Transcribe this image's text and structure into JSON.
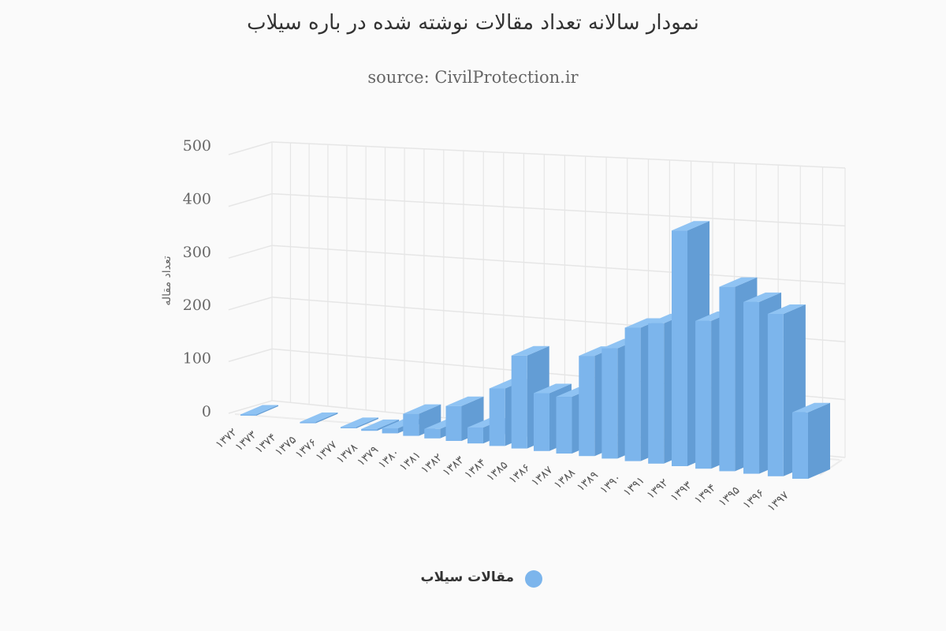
{
  "chart_data": {
    "type": "bar",
    "three_d": true,
    "title": "نمودار سالانه تعداد مقالات نوشته شده در باره سیلاب",
    "subtitle": "source: CivilProtection.ir",
    "xlabel": "",
    "ylabel": "تعداد مقاله",
    "ylim": [
      0,
      500
    ],
    "yticks": [
      "0",
      "100",
      "200",
      "300",
      "400",
      "500"
    ],
    "grid": true,
    "legend_position": "bottom",
    "color": "#7cb5ec",
    "categories": [
      "۱۳۷۲",
      "۱۳۷۳",
      "۱۳۷۴",
      "۱۳۷۵",
      "۱۳۷۶",
      "۱۳۷۷",
      "۱۳۷۸",
      "۱۳۷۹",
      "۱۳۸۰",
      "۱۳۸۱",
      "۱۳۸۲",
      "۱۳۸۳",
      "۱۳۸۴",
      "۱۳۸۵",
      "۱۳۸۶",
      "۱۳۸۷",
      "۱۳۸۸",
      "۱۳۸۹",
      "۱۳۹۰",
      "۱۳۹۱",
      "۱۳۹۲",
      "۱۳۹۳",
      "۱۳۹۴",
      "۱۳۹۵",
      "۱۳۹۶",
      "۱۳۹۷"
    ],
    "series": [
      {
        "name": "مقالات سیلاب",
        "values": [
          2,
          0,
          0,
          2,
          0,
          2,
          3,
          8,
          35,
          15,
          55,
          25,
          90,
          145,
          90,
          88,
          155,
          170,
          205,
          215,
          360,
          225,
          280,
          260,
          245,
          100
        ]
      }
    ]
  }
}
